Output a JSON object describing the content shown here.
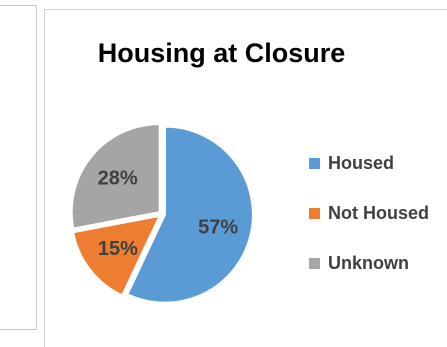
{
  "chart_data": {
    "type": "pie",
    "title": "Housing at Closure",
    "categories": [
      "Housed",
      "Not Housed",
      "Unknown"
    ],
    "values": [
      57,
      15,
      28
    ],
    "data_labels": [
      "57%",
      "15%",
      "28%"
    ],
    "colors": [
      "#5b9bd5",
      "#ed7d31",
      "#a5a5a5"
    ],
    "legend_position": "right"
  },
  "legend": {
    "items": [
      {
        "label": "Housed",
        "color": "#5b9bd5"
      },
      {
        "label": "Not Housed",
        "color": "#ed7d31"
      },
      {
        "label": "Unknown",
        "color": "#a5a5a5"
      }
    ]
  }
}
